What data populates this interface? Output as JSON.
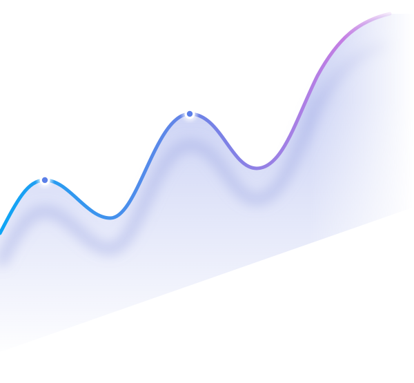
{
  "graphic": {
    "kind": "decorative-wave-line",
    "markers": [
      "peak-marker",
      "peak-marker"
    ]
  },
  "colors": {
    "line_start": "#0ea5f5",
    "line_mid": "#6b82e6",
    "line_end": "#c47ee3",
    "area": "#8f9ee8",
    "marker_fill": "#5b7fe8",
    "marker_ring": "#ffffff",
    "background": "#ffffff"
  }
}
